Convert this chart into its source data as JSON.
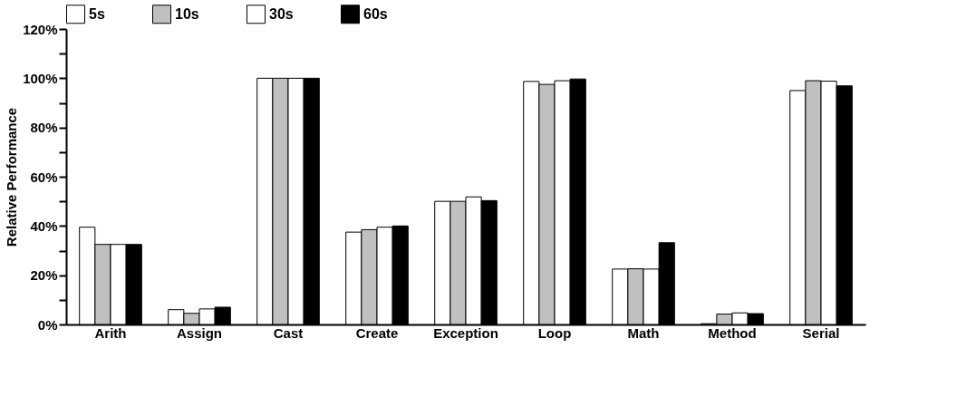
{
  "chart_data": {
    "type": "bar",
    "ylabel": "Relative Performance",
    "categories": [
      "Arith",
      "Assign",
      "Cast",
      "Create",
      "Exception",
      "Loop",
      "Math",
      "Method",
      "Serial"
    ],
    "series": [
      {
        "name": "5s",
        "color": "#ffffff",
        "values": [
          39.5,
          6,
          100,
          37.5,
          50,
          98.7,
          22.5,
          0.3,
          95
        ]
      },
      {
        "name": "10s",
        "color": "#c0c0c0",
        "values": [
          32.5,
          4.5,
          100,
          38.5,
          50,
          97.5,
          22.6,
          4.2,
          99
        ]
      },
      {
        "name": "30s",
        "color": "#ffffff",
        "values": [
          32.5,
          6.3,
          100,
          39.5,
          51.8,
          99,
          22.5,
          4.7,
          98.8
        ]
      },
      {
        "name": "60s",
        "color": "#000000",
        "values": [
          32.5,
          7,
          100,
          40,
          50.3,
          99.7,
          33.2,
          4.4,
          96.9
        ]
      }
    ],
    "ylim": [
      0,
      120
    ],
    "yticks": [
      {
        "value": 0,
        "label": "0%"
      },
      {
        "value": 10,
        "label": null
      },
      {
        "value": 20,
        "label": "20%"
      },
      {
        "value": 30,
        "label": null
      },
      {
        "value": 40,
        "label": "40%"
      },
      {
        "value": 50,
        "label": null
      },
      {
        "value": 60,
        "label": "60%"
      },
      {
        "value": 70,
        "label": null
      },
      {
        "value": 80,
        "label": "80%"
      },
      {
        "value": 90,
        "label": null
      },
      {
        "value": 100,
        "label": "100%"
      },
      {
        "value": 110,
        "label": null
      },
      {
        "value": 120,
        "label": "120%"
      }
    ],
    "grid": false,
    "legend": "top"
  }
}
